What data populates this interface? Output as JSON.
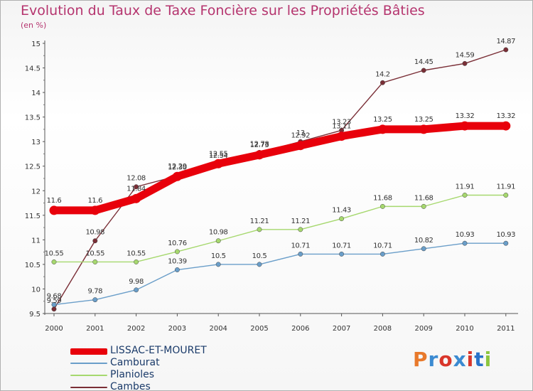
{
  "title": "Evolution du Taux de Taxe Foncière sur les Propriétés Bâties",
  "unit_label": "(en %)",
  "brand": {
    "text": "Proxiti",
    "letters": [
      {
        "ch": "P",
        "color": "#e8792b"
      },
      {
        "ch": "r",
        "color": "#3b8ad1"
      },
      {
        "ch": "o",
        "color": "#d9362b"
      },
      {
        "ch": "x",
        "color": "#3b8ad1"
      },
      {
        "ch": "i",
        "color": "#d9362b"
      },
      {
        "ch": "t",
        "color": "#2a73c9"
      },
      {
        "ch": "i",
        "color": "#8cc63f"
      }
    ]
  },
  "chart_data": {
    "type": "line",
    "title": "Evolution du Taux de Taxe Foncière sur les Propriétés Bâties",
    "ylabel": "(en %)",
    "xlabel": "",
    "ylim": [
      9.5,
      15
    ],
    "yticks": [
      "9.5",
      "10",
      "10.5",
      "11",
      "11.5",
      "12",
      "12.5",
      "13",
      "13.5",
      "14",
      "14.5",
      "15"
    ],
    "x": [
      "2000",
      "2001",
      "2002",
      "2003",
      "2004",
      "2005",
      "2006",
      "2007",
      "2008",
      "2009",
      "2010",
      "2011"
    ],
    "grid": false,
    "legend": "bottom-left",
    "series": [
      {
        "name": "LISSAC-ET-MOURET",
        "color": "#e8000b",
        "values": [
          11.6,
          11.6,
          11.84,
          12.29,
          12.55,
          12.73,
          12.92,
          13.11,
          13.25,
          13.25,
          13.32,
          13.32
        ],
        "labels": [
          "11.6",
          "11.6",
          "11.84",
          "12.29",
          "12.55",
          "12.73",
          "12.92",
          "13.11",
          "13.25",
          "13.25",
          "13.32",
          "13.32"
        ]
      },
      {
        "name": "Camburat",
        "color": "#6a9ec9",
        "values": [
          9.68,
          9.78,
          9.98,
          10.39,
          10.5,
          10.5,
          10.71,
          10.71,
          10.71,
          10.82,
          10.93,
          10.93
        ],
        "labels": [
          "9.68",
          "9.78",
          "9.98",
          "10.39",
          "10.5",
          "10.5",
          "10.71",
          "10.71",
          "10.71",
          "10.82",
          "10.93",
          "10.93"
        ]
      },
      {
        "name": "Planioles",
        "color": "#a6d86e",
        "values": [
          10.55,
          10.55,
          10.55,
          10.76,
          10.98,
          11.21,
          11.21,
          11.43,
          11.68,
          11.68,
          11.91,
          11.91
        ],
        "labels": [
          "10.55",
          "10.55",
          "10.55",
          "10.76",
          "10.98",
          "11.21",
          "11.21",
          "11.43",
          "11.68",
          "11.68",
          "11.91",
          "11.91"
        ]
      },
      {
        "name": "Cambes",
        "color": "#7a2e36",
        "values": [
          9.59,
          10.98,
          12.08,
          12.3,
          12.54,
          12.78,
          13.0,
          13.23,
          14.2,
          14.45,
          14.59,
          14.87
        ],
        "labels": [
          "9.59",
          "10.98",
          "12.08",
          "12.30",
          "12.54",
          "12.78",
          "13",
          "13.23",
          "14.2",
          "14.45",
          "14.59",
          "14.87"
        ]
      }
    ]
  }
}
